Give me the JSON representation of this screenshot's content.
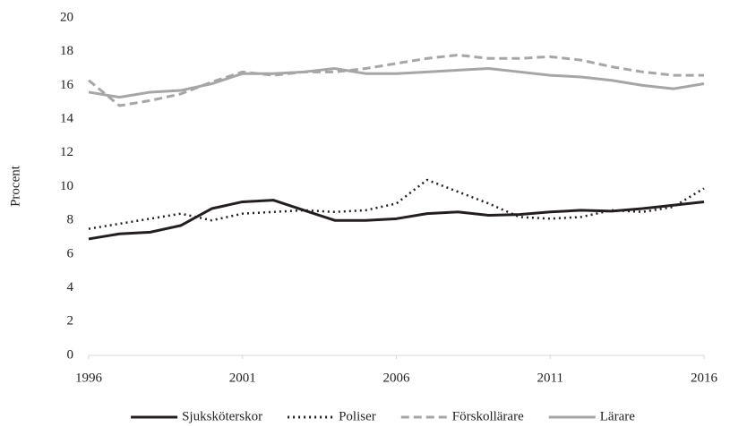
{
  "chart_data": {
    "type": "line",
    "y_label": "Procent",
    "x": [
      1996,
      1997,
      1998,
      1999,
      2000,
      2001,
      2002,
      2003,
      2004,
      2005,
      2006,
      2007,
      2008,
      2009,
      2010,
      2011,
      2012,
      2013,
      2014,
      2015,
      2016
    ],
    "xlim": [
      1996,
      2016
    ],
    "xticks": [
      1996,
      2001,
      2006,
      2011,
      2016
    ],
    "ylim": [
      0,
      20
    ],
    "yticks": [
      0,
      2,
      4,
      6,
      8,
      10,
      12,
      14,
      16,
      18,
      20
    ],
    "grid": false,
    "legend": "bottom",
    "series": [
      {
        "name": "Sjuksköterskor",
        "color": "#231f20",
        "style": "solid",
        "values": [
          6.9,
          7.2,
          7.3,
          7.7,
          8.7,
          9.1,
          9.2,
          8.6,
          8.0,
          8.0,
          8.1,
          8.4,
          8.5,
          8.3,
          8.35,
          8.5,
          8.6,
          8.55,
          8.7,
          8.9,
          9.1
        ]
      },
      {
        "name": "Poliser",
        "color": "#231f20",
        "style": "dotted",
        "values": [
          7.5,
          7.8,
          8.1,
          8.4,
          8.0,
          8.4,
          8.5,
          8.6,
          8.5,
          8.6,
          9.0,
          10.4,
          9.7,
          9.0,
          8.2,
          8.1,
          8.2,
          8.6,
          8.5,
          8.8,
          9.9
        ]
      },
      {
        "name": "Förskollärare",
        "color": "#a6a6a6",
        "style": "dashed",
        "values": [
          16.3,
          14.8,
          15.1,
          15.5,
          16.2,
          16.8,
          16.6,
          16.8,
          16.8,
          17.0,
          17.3,
          17.6,
          17.8,
          17.6,
          17.6,
          17.7,
          17.5,
          17.1,
          16.8,
          16.6,
          16.6
        ]
      },
      {
        "name": "Lärare",
        "color": "#a6a6a6",
        "style": "solid",
        "values": [
          15.6,
          15.3,
          15.6,
          15.7,
          16.1,
          16.7,
          16.7,
          16.8,
          17.0,
          16.7,
          16.7,
          16.8,
          16.9,
          17.0,
          16.8,
          16.6,
          16.5,
          16.3,
          16.0,
          15.8,
          16.1
        ]
      }
    ]
  }
}
